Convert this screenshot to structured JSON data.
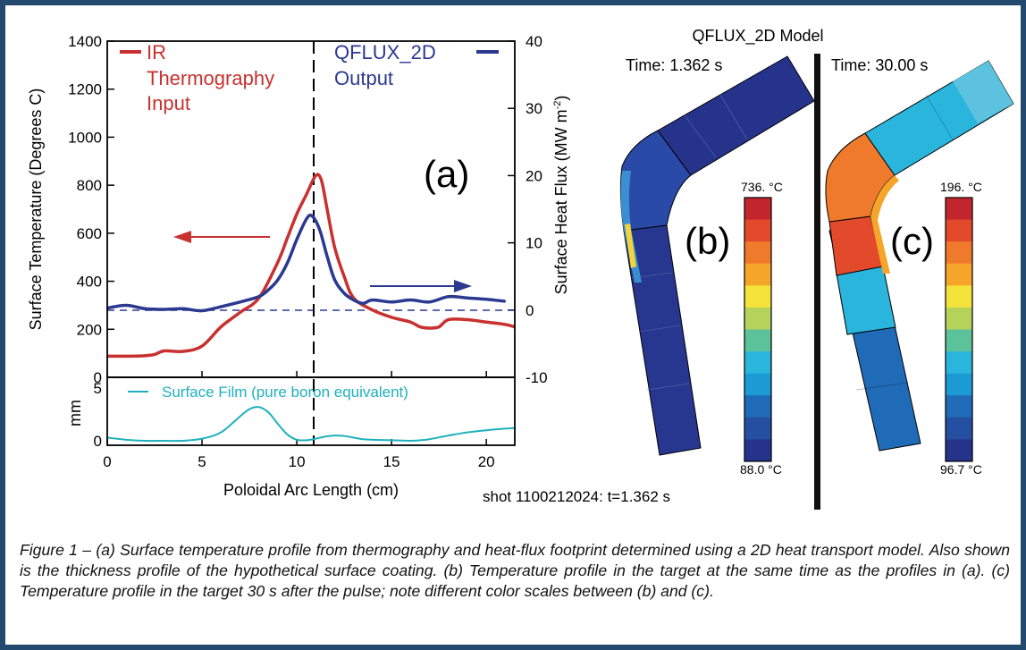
{
  "colors": {
    "frame": "#24496e",
    "ir": "#c8312f",
    "qflux": "#2b3990",
    "film": "#1fb0bd"
  },
  "panel_a": {
    "label": "(a)",
    "legend_ir_lines": [
      "IR",
      "Thermography",
      "Input"
    ],
    "legend_qflux_lines": [
      "QFLUX_2D",
      "Output"
    ],
    "left_ylabel": "Surface Temperature (Degrees C)",
    "right_ylabel_main": "Surface Heat Flux (MW m",
    "right_ylabel_sup": "-2",
    "right_ylabel_close": ")",
    "film_label": "Surface Film (pure boron equivalent)",
    "film_ylabel": "mm",
    "xlabel": "Poloidal Arc Length (cm)",
    "left_ticks": [
      "0",
      "200",
      "400",
      "600",
      "800",
      "1000",
      "1200",
      "1400"
    ],
    "right_ticks": [
      "-10",
      "0",
      "10",
      "20",
      "30",
      "40"
    ],
    "film_ticks": [
      "0",
      "5"
    ],
    "x_ticks": [
      "0",
      "5",
      "10",
      "15",
      "20"
    ]
  },
  "model": {
    "title": "QFLUX_2D Model",
    "time_b": "Time: 1.362 s",
    "time_c": "Time: 30.00 s",
    "label_b": "(b)",
    "label_c": "(c)",
    "scale_b_max": "736. °C",
    "scale_b_min": "88.0 °C",
    "scale_c_max": "196. °C",
    "scale_c_min": "96.7 °C",
    "colorbar": [
      "#c4262e",
      "#e34a2c",
      "#f07a2b",
      "#f5a52a",
      "#f4e33a",
      "#b5d35a",
      "#5cc29a",
      "#2ab5dd",
      "#1b9ad4",
      "#1f6bb8",
      "#254fa0",
      "#26338a"
    ],
    "shot": "shot 1100212024: t=1.362 s"
  },
  "caption": "Figure 1 – (a) Surface temperature profile from thermography and heat-flux footprint determined using a 2D heat transport model. Also shown is the thickness profile of the hypothetical surface coating. (b) Temperature profile in the target at the same time as the profiles in (a). (c) Temperature profile in the target 30 s after the pulse; note different color scales between (b) and (c).",
  "chart_data": [
    {
      "type": "line",
      "title": "",
      "xlabel": "Poloidal Arc Length (cm)",
      "ylabel": "Surface Temperature (Degrees C)",
      "y2label": "Surface Heat Flux (MW m-2)",
      "xlim": [
        0,
        21.5
      ],
      "ylim": [
        0,
        1400
      ],
      "y2lim": [
        -10,
        40
      ],
      "series": [
        {
          "name": "IR Thermography Input",
          "axis": "left",
          "x": [
            0,
            1,
            2,
            2.5,
            3,
            4,
            5,
            6,
            7,
            8,
            9,
            9.5,
            10,
            10.5,
            11,
            11.3,
            11.6,
            12,
            12.5,
            13,
            14,
            15,
            16,
            16.5,
            17,
            17.5,
            18,
            19,
            20,
            21,
            21.5
          ],
          "y": [
            88,
            88,
            90,
            95,
            110,
            108,
            130,
            210,
            270,
            330,
            480,
            580,
            680,
            760,
            840,
            820,
            700,
            540,
            420,
            330,
            280,
            250,
            230,
            210,
            205,
            210,
            240,
            240,
            230,
            220,
            210
          ]
        },
        {
          "name": "QFLUX_2D Output",
          "axis": "right",
          "x": [
            0,
            1,
            2,
            3,
            4,
            5,
            6,
            7,
            8,
            8.5,
            9,
            9.5,
            10,
            10.5,
            10.8,
            11.2,
            11.6,
            12,
            12.5,
            13,
            13.5,
            14,
            15,
            16,
            17,
            18,
            19,
            20,
            21
          ],
          "y": [
            0.3,
            0.7,
            0.2,
            0.1,
            0.2,
            -0.1,
            0.5,
            1.2,
            2.0,
            3.0,
            4.5,
            7.0,
            10.5,
            13.5,
            14.0,
            12.0,
            8.0,
            4.5,
            2.5,
            1.5,
            1.0,
            1.5,
            1.2,
            1.5,
            1.2,
            2.0,
            1.8,
            1.6,
            1.3
          ]
        }
      ]
    },
    {
      "type": "line",
      "title": "",
      "xlabel": "Poloidal Arc Length (cm)",
      "ylabel": "mm",
      "xlim": [
        0,
        21.5
      ],
      "ylim": [
        0,
        5
      ],
      "series": [
        {
          "name": "Surface Film (pure boron equivalent)",
          "x": [
            0,
            1,
            2,
            3,
            4,
            5,
            6,
            7,
            7.5,
            8,
            8.5,
            9,
            9.5,
            10,
            10.5,
            11,
            11.5,
            12,
            12.5,
            13,
            13.5,
            14,
            15,
            16,
            16.5,
            17,
            18,
            19,
            20,
            21,
            21.5
          ],
          "y": [
            0.3,
            0.1,
            0,
            0,
            0,
            0.2,
            0.8,
            2.3,
            3.0,
            3.2,
            2.7,
            1.6,
            0.6,
            0.1,
            0.05,
            0.2,
            0.4,
            0.5,
            0.45,
            0.3,
            0.15,
            0.1,
            0.05,
            0,
            0.05,
            0.15,
            0.5,
            0.8,
            1.0,
            1.15,
            1.2
          ]
        }
      ]
    }
  ]
}
